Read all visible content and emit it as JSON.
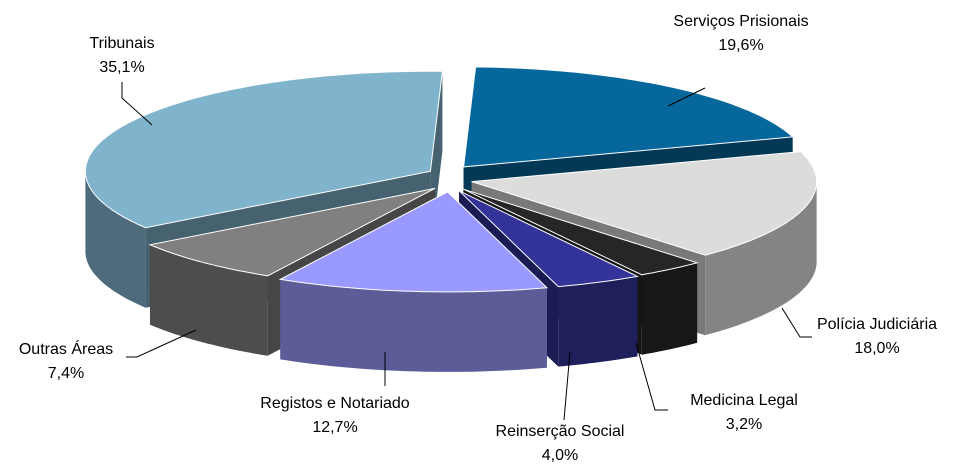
{
  "chart_data": {
    "type": "pie",
    "categories": [
      "Serviços Prisionais",
      "Polícia Judiciária",
      "Medicina Legal",
      "Reinserção Social",
      "Registos e Notariado",
      "Outras Áreas",
      "Tribunais"
    ],
    "values": [
      19.6,
      18.0,
      3.2,
      4.0,
      12.7,
      7.4,
      35.1
    ],
    "value_labels": [
      "19,6%",
      "18,0%",
      "3,2%",
      "4,0%",
      "12,7%",
      "7,4%",
      "35,1%"
    ],
    "colors": [
      "#05679b",
      "#dcdcdc",
      "#262626",
      "#333399",
      "#9999ff",
      "#808080",
      "#80b3cc"
    ]
  }
}
